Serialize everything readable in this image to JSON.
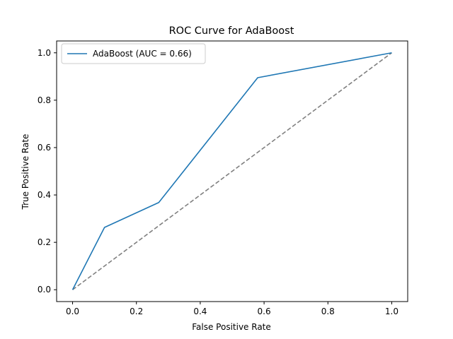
{
  "chart_data": {
    "type": "line",
    "title": "ROC Curve for AdaBoost",
    "xlabel": "False Positive Rate",
    "ylabel": "True Positive Rate",
    "xlim": [
      -0.05,
      1.05
    ],
    "ylim": [
      -0.05,
      1.05
    ],
    "xticks": [
      0.0,
      0.2,
      0.4,
      0.6,
      0.8,
      1.0
    ],
    "yticks": [
      0.0,
      0.2,
      0.4,
      0.6,
      0.8,
      1.0
    ],
    "xtick_labels": [
      "0.0",
      "0.2",
      "0.4",
      "0.6",
      "0.8",
      "1.0"
    ],
    "ytick_labels": [
      "0.0",
      "0.2",
      "0.4",
      "0.6",
      "0.8",
      "1.0"
    ],
    "grid": false,
    "legend_position": "top-left",
    "series": [
      {
        "name": "AdaBoost (AUC = 0.66)",
        "color": "#1f77b4",
        "style": "solid",
        "x": [
          0.0,
          0.1,
          0.27,
          0.58,
          1.0
        ],
        "y": [
          0.0,
          0.263,
          0.368,
          0.895,
          1.0
        ]
      }
    ],
    "reference_line": {
      "color": "#808080",
      "style": "dashed",
      "x": [
        0.0,
        1.0
      ],
      "y": [
        0.0,
        1.0
      ]
    }
  }
}
